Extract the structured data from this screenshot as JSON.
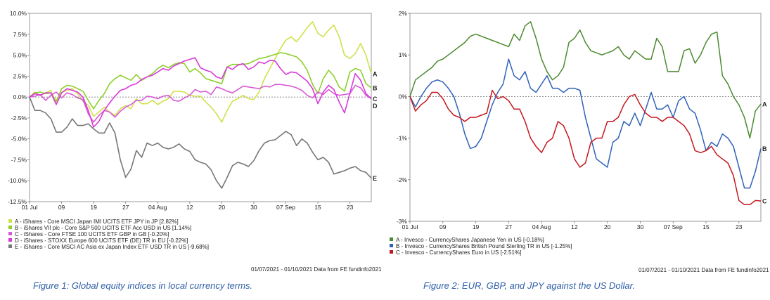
{
  "figure1": {
    "caption": "Figure 1: Global equity indices in local currency terms.",
    "source": "01/07/2021 - 01/10/2021 Data from FE fundinfo2021",
    "chart_data": {
      "type": "line",
      "ylim": [
        -12.5,
        10
      ],
      "xlim": [
        0,
        64
      ],
      "yticks": [
        {
          "v": 10,
          "label": "10.0%"
        },
        {
          "v": 7.5,
          "label": "7.5%"
        },
        {
          "v": 5,
          "label": "5.0%"
        },
        {
          "v": 2.5,
          "label": "2.5%"
        },
        {
          "v": 0,
          "label": "0.0%"
        },
        {
          "v": -2.5,
          "label": "-2.5%"
        },
        {
          "v": -5,
          "label": "-5.0%"
        },
        {
          "v": -7.5,
          "label": "-7.5%"
        },
        {
          "v": -10,
          "label": "-10.0%"
        },
        {
          "v": -12.5,
          "label": "-12.5%"
        }
      ],
      "xticks": [
        {
          "i": 0,
          "label": "01 Jul"
        },
        {
          "i": 6,
          "label": "09"
        },
        {
          "i": 12,
          "label": "19"
        },
        {
          "i": 18,
          "label": "27"
        },
        {
          "i": 24,
          "label": "04 Aug"
        },
        {
          "i": 30,
          "label": "12"
        },
        {
          "i": 36,
          "label": "20"
        },
        {
          "i": 42,
          "label": "30"
        },
        {
          "i": 48,
          "label": "07 Sep"
        },
        {
          "i": 54,
          "label": "15"
        },
        {
          "i": 60,
          "label": "23"
        }
      ],
      "series": [
        {
          "key": "A",
          "name": "A - iShares - Core MSCI Japan IMI UCITS ETF JPY in JP [2.82%]",
          "color": "#d2e04a",
          "values": [
            0,
            0.6,
            0.2,
            0.5,
            0.8,
            -0.8,
            0.6,
            0.8,
            1.0,
            0.4,
            -0.5,
            -1.0,
            -2.3,
            -1.8,
            -1.2,
            -1.8,
            -2.2,
            -1.4,
            -1.0,
            -1.4,
            -0.2,
            -0.8,
            -0.8,
            -0.4,
            -0.9,
            -0.5,
            -0.2,
            0.7,
            0.7,
            0.6,
            0.2,
            0.1,
            0.1,
            -0.6,
            -1.2,
            -2.0,
            -3.0,
            -1.6,
            -0.5,
            -0.2,
            0.2,
            -0.2,
            -0.3,
            0.6,
            2.2,
            3.4,
            4.6,
            5.8,
            6.8,
            7.2,
            6.6,
            7.4,
            8.3,
            9.0,
            7.6,
            7.2,
            8.0,
            8.6,
            7.2,
            5.0,
            4.6,
            5.2,
            6.4,
            5.0,
            2.8
          ]
        },
        {
          "key": "B",
          "name": "B - iShares VII plc - Core S&P 500 UCITS ETF Acc USD in US [1.14%]",
          "color": "#8ecf2c",
          "values": [
            0,
            0.5,
            0.6,
            0.4,
            0.5,
            -0.5,
            1.0,
            1.4,
            1.3,
            1.0,
            0.7,
            -0.4,
            -1.4,
            -0.4,
            0.4,
            1.6,
            2.2,
            2.6,
            2.3,
            2.0,
            2.7,
            2.0,
            2.4,
            2.8,
            3.4,
            3.8,
            3.5,
            3.9,
            4.1,
            4.0,
            3.0,
            3.4,
            2.9,
            2.2,
            2.0,
            1.8,
            1.6,
            3.6,
            3.9,
            3.9,
            3.9,
            4.0,
            4.3,
            4.6,
            4.7,
            4.9,
            5.1,
            5.3,
            5.2,
            5.0,
            4.8,
            4.2,
            3.2,
            1.5,
            0.4,
            2.2,
            3.2,
            2.5,
            1.2,
            0.7,
            3.0,
            3.4,
            3.2,
            1.6,
            1.1
          ]
        },
        {
          "key": "C",
          "name": "C - iShares - Core FTSE 100 UCITS ETF GBP in GB [-0.20%]",
          "color": "#d85ad6",
          "values": [
            0,
            0.1,
            0.3,
            -0.4,
            0.2,
            0.6,
            -0.1,
            0.5,
            0.3,
            -0.1,
            -0.3,
            -2.0,
            -3.0,
            -2.2,
            -1.6,
            -1.8,
            -2.4,
            -1.7,
            -1.2,
            -0.9,
            -0.4,
            -0.4,
            0.1,
            0.0,
            -0.2,
            0.1,
            0.2,
            -0.4,
            -0.5,
            -0.1,
            0.2,
            0.9,
            0.6,
            0.7,
            0.3,
            1.2,
            1.0,
            0.7,
            0.5,
            0.9,
            1.3,
            1.2,
            1.1,
            1.0,
            1.3,
            1.2,
            1.5,
            1.5,
            1.4,
            1.3,
            1.1,
            0.8,
            0.2,
            -0.1,
            0.6,
            0.3,
            0.9,
            0.4,
            0.2,
            0.3,
            0.4,
            1.4,
            1.1,
            0.2,
            -0.2
          ]
        },
        {
          "key": "D",
          "name": "D - iShares - STOXX Europe 600 UCITS ETF (DE) TR in EU [-0.22%]",
          "color": "#d83ad8",
          "values": [
            0,
            0.4,
            0.2,
            0.5,
            0.5,
            -0.9,
            0.5,
            1.0,
            0.8,
            0.6,
            0.0,
            -1.6,
            -3.6,
            -2.9,
            -1.6,
            -0.7,
            0.1,
            0.8,
            1.0,
            1.4,
            1.6,
            2.1,
            2.4,
            2.6,
            3.0,
            3.4,
            3.2,
            3.7,
            4.0,
            4.3,
            4.5,
            4.7,
            3.5,
            3.2,
            3.0,
            2.4,
            2.2,
            3.6,
            3.3,
            3.8,
            4.0,
            3.3,
            3.6,
            4.2,
            4.0,
            4.4,
            4.3,
            3.4,
            2.7,
            3.0,
            2.9,
            2.4,
            1.9,
            1.0,
            -0.8,
            0.6,
            1.4,
            0.9,
            -0.6,
            -1.9,
            0.5,
            2.8,
            2.0,
            0.4,
            -0.2
          ]
        },
        {
          "key": "E",
          "name": "E - iShares - Core MSCI AC Asia ex Japan Index ETF USD TR in US [-9.68%]",
          "color": "#777777",
          "values": [
            0,
            -1.6,
            -1.6,
            -1.9,
            -2.6,
            -4.2,
            -4.2,
            -3.6,
            -2.6,
            -3.4,
            -3.4,
            -3.2,
            -3.8,
            -4.3,
            -4.3,
            -3.1,
            -4.3,
            -7.5,
            -9.6,
            -8.6,
            -6.4,
            -7.2,
            -5.5,
            -5.8,
            -5.5,
            -6.0,
            -6.2,
            -6.0,
            -5.6,
            -6.2,
            -6.5,
            -7.5,
            -7.8,
            -8.0,
            -8.7,
            -10.0,
            -10.9,
            -9.6,
            -8.2,
            -7.8,
            -8.0,
            -8.3,
            -7.6,
            -6.4,
            -5.5,
            -5.2,
            -5.1,
            -4.6,
            -4.1,
            -4.5,
            -5.8,
            -5.0,
            -5.5,
            -6.6,
            -7.5,
            -7.2,
            -7.8,
            -9.2,
            -9.0,
            -8.8,
            -8.5,
            -8.3,
            -8.8,
            -9.0,
            -9.7
          ]
        }
      ]
    }
  },
  "figure2": {
    "caption": "Figure 2: EUR, GBP, and JPY against the US Dollar.",
    "source": "01/07/2021 - 01/10/2021 Data from FE fundinfo2021",
    "chart_data": {
      "type": "line",
      "ylim": [
        -3,
        2
      ],
      "xlim": [
        0,
        64
      ],
      "yticks": [
        {
          "v": 2,
          "label": "2%"
        },
        {
          "v": 1,
          "label": "1%"
        },
        {
          "v": 0,
          "label": "0%"
        },
        {
          "v": -1,
          "label": "-1%"
        },
        {
          "v": -2,
          "label": "-2%"
        },
        {
          "v": -3,
          "label": "-3%"
        }
      ],
      "xticks": [
        {
          "i": 0,
          "label": "01 Jul"
        },
        {
          "i": 6,
          "label": "09"
        },
        {
          "i": 12,
          "label": "19"
        },
        {
          "i": 18,
          "label": "27"
        },
        {
          "i": 24,
          "label": "04 Aug"
        },
        {
          "i": 30,
          "label": "12"
        },
        {
          "i": 36,
          "label": "20"
        },
        {
          "i": 42,
          "label": "30"
        },
        {
          "i": 48,
          "label": "07 Sep"
        },
        {
          "i": 54,
          "label": "15"
        },
        {
          "i": 60,
          "label": "23"
        }
      ],
      "series": [
        {
          "key": "A",
          "name": "A - Invesco - CurrencyShares Japanese Yen in US [-0.18%]",
          "color": "#4b8a2e",
          "values": [
            0,
            0.4,
            0.5,
            0.6,
            0.7,
            0.85,
            0.9,
            1.0,
            1.1,
            1.2,
            1.3,
            1.45,
            1.5,
            1.45,
            1.4,
            1.35,
            1.3,
            1.25,
            1.2,
            1.5,
            1.35,
            1.7,
            1.8,
            1.4,
            0.9,
            0.6,
            0.4,
            0.5,
            0.7,
            1.3,
            1.4,
            1.6,
            1.3,
            1.1,
            1.05,
            1.0,
            1.05,
            1.1,
            1.2,
            1.0,
            0.9,
            1.1,
            1.0,
            0.9,
            0.9,
            1.4,
            1.2,
            0.6,
            0.6,
            0.6,
            1.1,
            1.15,
            0.8,
            1.0,
            1.3,
            1.5,
            1.55,
            0.5,
            0.3,
            0.0,
            -0.2,
            -0.5,
            -1.0,
            -0.35,
            -0.18
          ]
        },
        {
          "key": "B",
          "name": "B - Invesco - CurrencyShares British Pound Sterling TR in US [-1.25%]",
          "color": "#2f62b8",
          "values": [
            0,
            -0.25,
            0.0,
            0.2,
            0.35,
            0.4,
            0.35,
            0.2,
            0.0,
            -0.4,
            -0.9,
            -1.25,
            -1.2,
            -1.0,
            -0.6,
            -0.2,
            0.1,
            0.3,
            0.9,
            0.5,
            0.4,
            0.6,
            0.2,
            0.1,
            0.3,
            0.5,
            0.2,
            0.2,
            0.1,
            0.2,
            0.2,
            0.15,
            -0.5,
            -1.0,
            -1.5,
            -1.6,
            -1.7,
            -1.1,
            -1.0,
            -0.6,
            -0.7,
            -0.4,
            -0.7,
            -0.3,
            0.1,
            -0.3,
            -0.3,
            -0.2,
            -0.5,
            -0.1,
            0.0,
            -0.3,
            -0.4,
            -0.8,
            -1.3,
            -1.1,
            -1.2,
            -0.9,
            -1.0,
            -1.2,
            -1.7,
            -2.2,
            -2.2,
            -1.8,
            -1.25
          ]
        },
        {
          "key": "C",
          "name": "C - Invesco - CurrencyShares Euro in US [-2.51%]",
          "color": "#c4181f",
          "values": [
            0,
            -0.35,
            -0.2,
            -0.1,
            0.1,
            0.1,
            -0.05,
            -0.3,
            -0.45,
            -0.5,
            -0.6,
            -0.5,
            -0.5,
            -0.45,
            -0.4,
            0.15,
            -0.05,
            0.0,
            -0.1,
            -0.3,
            -0.3,
            -0.6,
            -1.0,
            -1.2,
            -1.35,
            -1.1,
            -1.0,
            -0.6,
            -0.7,
            -1.0,
            -1.5,
            -1.7,
            -1.6,
            -1.1,
            -1.0,
            -1.0,
            -0.6,
            -0.6,
            -0.5,
            -0.2,
            0.0,
            0.05,
            -0.2,
            -0.4,
            -0.5,
            -0.5,
            -0.6,
            -0.5,
            -0.5,
            -0.6,
            -0.7,
            -0.9,
            -1.3,
            -1.35,
            -1.3,
            -1.2,
            -1.4,
            -1.5,
            -1.6,
            -1.9,
            -2.5,
            -2.6,
            -2.6,
            -2.5,
            -2.51
          ]
        }
      ]
    }
  }
}
